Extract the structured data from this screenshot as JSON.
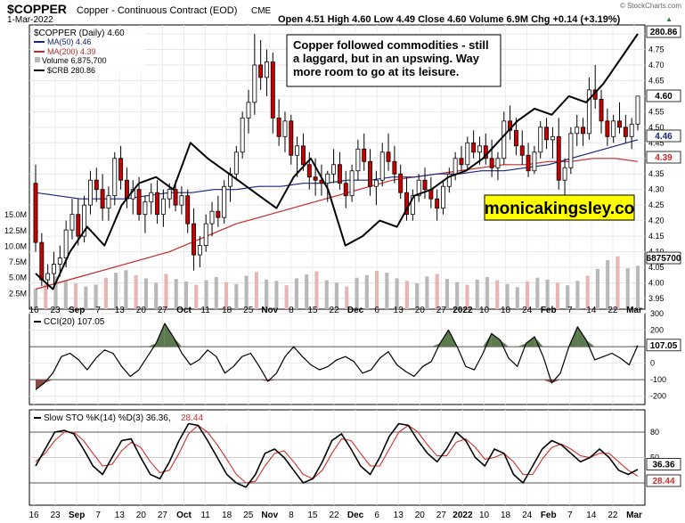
{
  "header": {
    "symbol": "$COPPER",
    "description": "Copper - Continuous Contract (EOD)",
    "exchange": "CME",
    "date": "1-Mar-2022",
    "quote": "Open 4.51  High 4.60  Low 4.49  Close 4.60  Volume 6.9M  Chg +0.14 (+3.19%)",
    "quote_arrow": "▲",
    "watermark": "© StockCharts.com"
  },
  "legend": {
    "main": "$COPPER (Daily) 4.60",
    "ma50": "MA(50) 4.46",
    "ma200": "MA(200) 4.39",
    "volume": "Volume 6,875,700",
    "crb": "$CRB 280.86"
  },
  "annotation": "Copper followed commodities - still a laggard, but in an upswing. Way more room to go at its leisure.",
  "annotation_lines": [
    "Copper followed commodities - still",
    "a laggard, but in an upswing. Way",
    "more room to go at its leisure."
  ],
  "brand_label": "monicakingsley.co",
  "price_axis": {
    "ticks": [
      "4.80",
      "4.75",
      "4.70",
      "4.65",
      "4.60",
      "4.55",
      "4.50",
      "4.45",
      "4.40",
      "4.35",
      "4.30",
      "4.25",
      "4.20",
      "4.15",
      "4.10",
      "4.05",
      "4.00",
      "3.95"
    ],
    "tags": {
      "crb": "280.86",
      "close": "4.60",
      "ma50": "4.46",
      "ma200": "4.39",
      "volume": "6875700"
    }
  },
  "volume_axis": {
    "ticks": [
      "15.0M",
      "12.5M",
      "10.0M",
      "7.5M",
      "5.0M",
      "2.5M"
    ]
  },
  "x_axis": {
    "labels": [
      "16",
      "23",
      "Sep",
      "7",
      "13",
      "20",
      "27",
      "Oct",
      "11",
      "18",
      "25",
      "Nov",
      "8",
      "15",
      "22",
      "Dec",
      "6",
      "13",
      "20",
      "27",
      "2022",
      "10",
      "18",
      "24",
      "Feb",
      "7",
      "14",
      "22",
      "Mar"
    ]
  },
  "cci_panel": {
    "label": "CCI(20) 107.05",
    "ticks": [
      "300",
      "200",
      "100",
      "0",
      "-100",
      "-200"
    ],
    "tag": "107.05"
  },
  "sto_panel": {
    "label_prefix": "Slow STO %K(14) %D(3) 36.36,",
    "label_d": "28.44",
    "ticks": [
      "80",
      "50",
      "20"
    ],
    "tags": {
      "k": "36.36",
      "d": "28.44"
    }
  },
  "colors": {
    "up": "#ffffff",
    "down": "#cc0000",
    "ma50": "#1a237e",
    "ma200": "#c62828",
    "crb": "#000000",
    "annotation_bg": "#ffffff",
    "brand_bg": "#ffff00",
    "cci_pos": "#5b7a4e",
    "cci_neg": "#8a4a44",
    "sto_k": "#000000",
    "sto_d": "#d32f2f",
    "vol_up": "#b8b8b8",
    "vol_down": "#e8b4b4"
  },
  "chart_data": {
    "type": "candlestick",
    "ylim": [
      3.95,
      4.8
    ],
    "dates": [
      "2021-08-16",
      "2021-09-07",
      "2021-10-01",
      "2021-11-01",
      "2021-12-06",
      "2022-01-03",
      "2022-02-01",
      "2022-03-01"
    ],
    "ohlc": [
      [
        4.32,
        4.38,
        4.1,
        4.13
      ],
      [
        4.13,
        4.16,
        3.99,
        4.01
      ],
      [
        4.01,
        4.06,
        3.98,
        4.03
      ],
      [
        4.03,
        4.1,
        3.98,
        4.06
      ],
      [
        4.06,
        4.12,
        4.02,
        4.08
      ],
      [
        4.08,
        4.2,
        4.05,
        4.17
      ],
      [
        4.17,
        4.27,
        4.14,
        4.22
      ],
      [
        4.22,
        4.27,
        4.12,
        4.15
      ],
      [
        4.15,
        4.28,
        4.13,
        4.25
      ],
      [
        4.25,
        4.36,
        4.22,
        4.33
      ],
      [
        4.33,
        4.37,
        4.26,
        4.3
      ],
      [
        4.3,
        4.35,
        4.2,
        4.24
      ],
      [
        4.24,
        4.31,
        4.2,
        4.28
      ],
      [
        4.28,
        4.42,
        4.25,
        4.4
      ],
      [
        4.4,
        4.44,
        4.3,
        4.33
      ],
      [
        4.33,
        4.37,
        4.24,
        4.27
      ],
      [
        4.27,
        4.33,
        4.22,
        4.3
      ],
      [
        4.3,
        4.34,
        4.2,
        4.22
      ],
      [
        4.22,
        4.28,
        4.16,
        4.26
      ],
      [
        4.26,
        4.32,
        4.22,
        4.29
      ],
      [
        4.29,
        4.33,
        4.19,
        4.22
      ],
      [
        4.22,
        4.3,
        4.18,
        4.27
      ],
      [
        4.27,
        4.32,
        4.24,
        4.3
      ],
      [
        4.3,
        4.33,
        4.23,
        4.25
      ],
      [
        4.25,
        4.31,
        4.22,
        4.28
      ],
      [
        4.28,
        4.3,
        4.16,
        4.19
      ],
      [
        4.19,
        4.24,
        4.04,
        4.09
      ],
      [
        4.09,
        4.15,
        4.05,
        4.12
      ],
      [
        4.12,
        4.22,
        4.1,
        4.19
      ],
      [
        4.19,
        4.26,
        4.15,
        4.23
      ],
      [
        4.23,
        4.28,
        4.18,
        4.21
      ],
      [
        4.21,
        4.33,
        4.19,
        4.31
      ],
      [
        4.31,
        4.37,
        4.26,
        4.35
      ],
      [
        4.35,
        4.44,
        4.33,
        4.42
      ],
      [
        4.42,
        4.55,
        4.4,
        4.53
      ],
      [
        4.53,
        4.62,
        4.48,
        4.58
      ],
      [
        4.58,
        4.8,
        4.54,
        4.7
      ],
      [
        4.7,
        4.78,
        4.62,
        4.66
      ],
      [
        4.66,
        4.75,
        4.6,
        4.71
      ],
      [
        4.71,
        4.74,
        4.48,
        4.53
      ],
      [
        4.53,
        4.59,
        4.44,
        4.47
      ],
      [
        4.47,
        4.55,
        4.42,
        4.52
      ],
      [
        4.52,
        4.54,
        4.38,
        4.41
      ],
      [
        4.41,
        4.47,
        4.34,
        4.44
      ],
      [
        4.44,
        4.48,
        4.36,
        4.38
      ],
      [
        4.38,
        4.42,
        4.3,
        4.34
      ],
      [
        4.34,
        4.4,
        4.28,
        4.33
      ],
      [
        4.33,
        4.38,
        4.28,
        4.32
      ],
      [
        4.32,
        4.36,
        4.26,
        4.35
      ],
      [
        4.35,
        4.43,
        4.32,
        4.38
      ],
      [
        4.38,
        4.42,
        4.3,
        4.32
      ],
      [
        4.32,
        4.36,
        4.24,
        4.28
      ],
      [
        4.28,
        4.38,
        4.26,
        4.36
      ],
      [
        4.36,
        4.46,
        4.33,
        4.43
      ],
      [
        4.43,
        4.48,
        4.36,
        4.39
      ],
      [
        4.39,
        4.43,
        4.28,
        4.31
      ],
      [
        4.31,
        4.36,
        4.25,
        4.33
      ],
      [
        4.33,
        4.45,
        4.31,
        4.42
      ],
      [
        4.42,
        4.48,
        4.36,
        4.39
      ],
      [
        4.39,
        4.44,
        4.32,
        4.35
      ],
      [
        4.35,
        4.38,
        4.27,
        4.29
      ],
      [
        4.29,
        4.34,
        4.2,
        4.22
      ],
      [
        4.22,
        4.3,
        4.2,
        4.28
      ],
      [
        4.28,
        4.35,
        4.26,
        4.33
      ],
      [
        4.33,
        4.37,
        4.27,
        4.3
      ],
      [
        4.3,
        4.34,
        4.24,
        4.27
      ],
      [
        4.27,
        4.3,
        4.2,
        4.24
      ],
      [
        4.24,
        4.33,
        4.22,
        4.31
      ],
      [
        4.31,
        4.37,
        4.29,
        4.35
      ],
      [
        4.35,
        4.42,
        4.33,
        4.4
      ],
      [
        4.4,
        4.44,
        4.36,
        4.38
      ],
      [
        4.38,
        4.47,
        4.36,
        4.45
      ],
      [
        4.45,
        4.49,
        4.4,
        4.42
      ],
      [
        4.42,
        4.47,
        4.38,
        4.44
      ],
      [
        4.44,
        4.48,
        4.38,
        4.4
      ],
      [
        4.4,
        4.46,
        4.34,
        4.37
      ],
      [
        4.37,
        4.42,
        4.33,
        4.4
      ],
      [
        4.4,
        4.55,
        4.38,
        4.52
      ],
      [
        4.52,
        4.57,
        4.46,
        4.49
      ],
      [
        4.49,
        4.53,
        4.41,
        4.44
      ],
      [
        4.44,
        4.49,
        4.38,
        4.41
      ],
      [
        4.41,
        4.45,
        4.34,
        4.36
      ],
      [
        4.36,
        4.44,
        4.35,
        4.42
      ],
      [
        4.42,
        4.52,
        4.4,
        4.5
      ],
      [
        4.5,
        4.53,
        4.43,
        4.46
      ],
      [
        4.46,
        4.5,
        4.4,
        4.47
      ],
      [
        4.47,
        4.53,
        4.3,
        4.33
      ],
      [
        4.33,
        4.4,
        4.28,
        4.37
      ],
      [
        4.37,
        4.5,
        4.35,
        4.48
      ],
      [
        4.48,
        4.54,
        4.44,
        4.5
      ],
      [
        4.5,
        4.53,
        4.44,
        4.48
      ],
      [
        4.48,
        4.66,
        4.46,
        4.62
      ],
      [
        4.62,
        4.7,
        4.56,
        4.59
      ],
      [
        4.59,
        4.62,
        4.48,
        4.52
      ],
      [
        4.52,
        4.56,
        4.44,
        4.47
      ],
      [
        4.47,
        4.54,
        4.45,
        4.52
      ],
      [
        4.52,
        4.58,
        4.48,
        4.5
      ],
      [
        4.5,
        4.54,
        4.45,
        4.47
      ],
      [
        4.47,
        4.53,
        4.43,
        4.51
      ],
      [
        4.51,
        4.6,
        4.49,
        4.6
      ]
    ],
    "ma50": [
      4.29,
      4.28,
      4.27,
      4.27,
      4.27,
      4.28,
      4.29,
      4.29,
      4.3,
      4.3,
      4.31,
      4.31,
      4.32,
      4.32,
      4.33,
      4.33,
      4.34,
      4.34,
      4.35,
      4.35,
      4.36,
      4.36,
      4.37,
      4.38,
      4.4,
      4.42,
      4.44,
      4.46
    ],
    "ma200": [
      3.98,
      4.0,
      4.02,
      4.04,
      4.06,
      4.08,
      4.1,
      4.13,
      4.16,
      4.19,
      4.21,
      4.23,
      4.25,
      4.27,
      4.29,
      4.31,
      4.33,
      4.34,
      4.35,
      4.36,
      4.37,
      4.38,
      4.38,
      4.39,
      4.39,
      4.4,
      4.4,
      4.39
    ],
    "crb_overlay": [
      4.03,
      3.98,
      4.1,
      4.18,
      4.12,
      4.25,
      4.32,
      4.34,
      4.3,
      4.45,
      4.4,
      4.36,
      4.32,
      4.28,
      4.24,
      4.34,
      4.4,
      4.3,
      4.12,
      4.15,
      4.2,
      4.18,
      4.28,
      4.3,
      4.34,
      4.36,
      4.4,
      4.46,
      4.52,
      4.56,
      4.54,
      4.6,
      4.58,
      4.64,
      4.72,
      4.8
    ],
    "volume": [
      3.2,
      4.0,
      5.2,
      4.6,
      4.1,
      3.6,
      3.9,
      5.0,
      5.8,
      6.2,
      5.4,
      4.9,
      4.2,
      5.6,
      4.8,
      4.4,
      3.9,
      4.6,
      5.1,
      4.3,
      4.0,
      5.3,
      5.9,
      4.7,
      4.5,
      3.8,
      4.9,
      5.5,
      6.0,
      4.6,
      4.2,
      3.6,
      5.0,
      5.4,
      6.1,
      5.8,
      4.9,
      4.5,
      4.1,
      5.2,
      5.6,
      4.8,
      4.3,
      3.9,
      4.7,
      5.1,
      4.6,
      4.0,
      3.5,
      4.4,
      5.0,
      4.7,
      4.2,
      3.8,
      4.5,
      5.3,
      6.4,
      7.8,
      8.4,
      6.5,
      6.9
    ],
    "cci": [
      -160,
      -120,
      -60,
      40,
      60,
      20,
      -40,
      30,
      80,
      60,
      -20,
      -80,
      -40,
      40,
      120,
      240,
      160,
      60,
      -10,
      20,
      80,
      40,
      -60,
      -20,
      40,
      60,
      -20,
      -110,
      -60,
      40,
      100,
      40,
      -10,
      -40,
      -20,
      20,
      40,
      10,
      -60,
      -40,
      30,
      70,
      -10,
      -50,
      -80,
      -20,
      10,
      120,
      200,
      100,
      -20,
      -40,
      60,
      180,
      140,
      30,
      -20,
      120,
      160,
      40,
      -120,
      -60,
      100,
      220,
      140,
      20,
      40,
      60,
      30,
      -10,
      107
    ],
    "sto_k": [
      40,
      60,
      80,
      82,
      78,
      60,
      40,
      30,
      50,
      70,
      72,
      50,
      30,
      25,
      45,
      70,
      90,
      88,
      70,
      50,
      30,
      20,
      15,
      30,
      55,
      60,
      50,
      35,
      20,
      25,
      45,
      70,
      78,
      60,
      40,
      30,
      50,
      75,
      90,
      88,
      70,
      55,
      45,
      60,
      80,
      70,
      50,
      40,
      60,
      55,
      30,
      20,
      40,
      60,
      70,
      65,
      55,
      45,
      50,
      60,
      50,
      35,
      30,
      36
    ],
    "sto_d": [
      45,
      55,
      70,
      80,
      80,
      70,
      55,
      40,
      42,
      58,
      68,
      62,
      45,
      32,
      35,
      55,
      78,
      88,
      80,
      65,
      48,
      30,
      20,
      22,
      40,
      55,
      58,
      45,
      30,
      25,
      35,
      55,
      72,
      70,
      55,
      40,
      40,
      60,
      80,
      88,
      80,
      65,
      52,
      52,
      68,
      72,
      62,
      48,
      50,
      55,
      45,
      30,
      30,
      48,
      62,
      66,
      60,
      52,
      50,
      55,
      55,
      45,
      35,
      28
    ]
  }
}
